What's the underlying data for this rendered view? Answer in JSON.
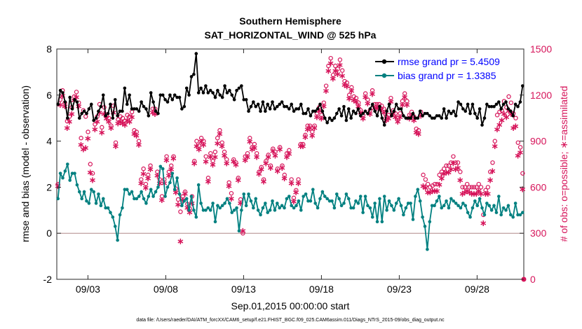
{
  "chart_data": {
    "type": "line",
    "title": [
      "Southern Hemisphere",
      "SAT_HORIZONTAL_WIND @ 525 hPa"
    ],
    "xlabel": "Sep.01,2015 00:00:00 start",
    "ylabel_left": "rmse and bias (model - observation)",
    "ylabel_right": "# of obs: o=possible; ∗=assimilated",
    "footnote": "data file: /Users/raeder/DAI/ATM_forcXX/CAM6_setup/f.e21.FHIST_BGC.f09_025.CAM6assim.011/Diags_NTrS_2015-09/obs_diag_output.nc",
    "xlim": [
      0.0,
      30.0
    ],
    "xticks": [
      2,
      7,
      12,
      17,
      22,
      27
    ],
    "xtick_labels": [
      "09/03",
      "09/08",
      "09/13",
      "09/18",
      "09/23",
      "09/28"
    ],
    "ylim_left": [
      -2,
      8
    ],
    "yticks_left": [
      -2,
      0,
      2,
      4,
      6,
      8
    ],
    "ylim_right": [
      0,
      1500
    ],
    "yticks_right": [
      0,
      300,
      600,
      900,
      1200,
      1500
    ],
    "legend": {
      "position": "top-right",
      "entries": [
        "rmse grand pr = 5.4509",
        "bias grand pr = 1.3385"
      ]
    },
    "colors": {
      "rmse": "#000000",
      "bias": "#008080",
      "obs": "#d6145a",
      "zero": "#b08a8a",
      "legend_text": "#0000ff"
    },
    "series": [
      {
        "name": "rmse",
        "axis": "left",
        "values": [
          5.6,
          6.2,
          6.1,
          5.7,
          5.0,
          5.9,
          5.4,
          5.8,
          5.7,
          5.0,
          5.2,
          5.3,
          5.2,
          5.4,
          5.6,
          4.9,
          5.0,
          5.3,
          5.5,
          6.0,
          5.1,
          5.2,
          5.6,
          5.0,
          5.8,
          5.1,
          5.3,
          5.3,
          6.3,
          5.6,
          6.0,
          5.4,
          5.4,
          5.4,
          5.3,
          5.7,
          5.5,
          5.4,
          5.1,
          6.1,
          5.7,
          5.3,
          5.2,
          6.0,
          6.0,
          5.8,
          5.7,
          6.0,
          5.8,
          6.0,
          5.9,
          5.9,
          5.4,
          5.5,
          6.3,
          6.0,
          6.8,
          6.9,
          7.8,
          6.1,
          6.3,
          6.1,
          6.4,
          6.1,
          6.2,
          6.1,
          5.9,
          6.2,
          6.0,
          5.9,
          6.4,
          6.1,
          6.2,
          6.0,
          5.8,
          6.2,
          6.3,
          6.4,
          5.8,
          5.8,
          5.3,
          5.5,
          5.7,
          5.5,
          5.6,
          5.3,
          5.7,
          5.3,
          5.6,
          5.4,
          5.7,
          5.4,
          5.5,
          5.6,
          5.7,
          5.5,
          5.5,
          5.4,
          5.6,
          5.3,
          5.4,
          5.4,
          5.6,
          5.2,
          5.2,
          5.4,
          5.1,
          5.3,
          5.3,
          5.4,
          5.6,
          5.3,
          5.0,
          4.8,
          5.0,
          4.9,
          5.0,
          5.2,
          5.4,
          5.1,
          5.5,
          4.9,
          5.4,
          5.0,
          5.3,
          5.2,
          5.4,
          5.1,
          5.2,
          5.3,
          5.2,
          5.4,
          5.6,
          5.3,
          5.1,
          5.5,
          5.0,
          4.7,
          5.3,
          5.6,
          5.1,
          5.3,
          5.6,
          5.4,
          5.4,
          5.1,
          5.0,
          5.0,
          5.0,
          5.2,
          5.0,
          5.0,
          5.3,
          5.1,
          5.2,
          5.2,
          5.1,
          5.0,
          5.0,
          5.1,
          5.1,
          5.0,
          5.4,
          5.0,
          5.3,
          5.2,
          5.3,
          5.1,
          5.7,
          5.6,
          5.4,
          5.3,
          5.6,
          5.2,
          5.6,
          5.2,
          5.0,
          5.4,
          4.7,
          5.0,
          5.6,
          5.5,
          5.5,
          5.5,
          5.6,
          5.7,
          5.4,
          5.6,
          5.7,
          5.4,
          5.3,
          5.1,
          5.6,
          5.5,
          5.7,
          6.4
        ]
      },
      {
        "name": "bias",
        "axis": "left",
        "values": [
          1.5,
          2.6,
          2.4,
          2.7,
          3.0,
          2.3,
          2.6,
          2.6,
          2.1,
          1.8,
          1.5,
          1.8,
          1.4,
          1.3,
          1.9,
          1.8,
          1.3,
          1.7,
          1.2,
          1.5,
          1.1,
          1.1,
          0.9,
          0.7,
          0.3,
          -0.3,
          0.8,
          1.1,
          1.9,
          1.9,
          1.7,
          1.8,
          1.5,
          1.5,
          1.6,
          1.8,
          1.5,
          1.3,
          1.6,
          1.9,
          1.6,
          1.8,
          2.0,
          2.9,
          2.8,
          1.6,
          2.0,
          2.2,
          2.6,
          1.9,
          2.4,
          1.7,
          1.2,
          1.4,
          1.5,
          1.0,
          1.6,
          1.0,
          0.7,
          2.1,
          1.3,
          1.0,
          1.0,
          1.1,
          1.0,
          1.3,
          0.5,
          1.2,
          1.1,
          1.2,
          1.3,
          1.5,
          1.3,
          0.9,
          1.0,
          1.1,
          0.1,
          1.0,
          1.7,
          1.2,
          1.7,
          1.4,
          1.1,
          1.5,
          1.0,
          0.8,
          1.1,
          1.3,
          0.9,
          1.0,
          1.4,
          1.0,
          1.3,
          1.1,
          1.2,
          1.1,
          1.5,
          1.6,
          1.2,
          1.1,
          1.2,
          1.4,
          1.0,
          1.6,
          1.7,
          1.4,
          1.4,
          1.9,
          1.3,
          1.1,
          1.5,
          1.8,
          1.6,
          1.5,
          1.4,
          1.4,
          1.1,
          1.7,
          1.5,
          1.2,
          1.3,
          1.7,
          1.5,
          1.1,
          1.1,
          1.4,
          1.3,
          1.6,
          0.9,
          1.6,
          1.2,
          1.1,
          0.7,
          1.3,
          0.5,
          1.5,
          0.5,
          1.6,
          1.0,
          1.4,
          1.2,
          1.0,
          1.3,
          1.5,
          1.2,
          0.8,
          1.1,
          1.3,
          1.3,
          0.6,
          1.6,
          1.9,
          1.4,
          0.7,
          0.3,
          -0.7,
          0.5,
          1.2,
          1.2,
          1.4,
          1.6,
          1.1,
          1.2,
          1.4,
          1.1,
          1.5,
          1.4,
          1.3,
          1.2,
          1.1,
          1.3,
          1.2,
          0.9,
          0.7,
          1.1,
          1.4,
          1.2,
          1.5,
          1.1,
          0.8,
          1.3,
          1.2,
          1.0,
          1.2,
          0.9,
          1.6,
          0.8,
          1.1,
          1.0,
          1.2,
          0.8,
          0.7,
          1.3,
          0.8,
          0.8,
          0.9
        ]
      },
      {
        "name": "obs possible",
        "axis": "right",
        "values": [
          620,
          1170,
          1230,
          1150,
          1030,
          1060,
          1120,
          1190,
          1220,
          1150,
          920,
          1100,
          1060,
          960,
          750,
          690,
          1010,
          1060,
          1140,
          990,
          1120,
          1070,
          1050,
          1000,
          1130,
          890,
          1040,
          1060,
          1050,
          1030,
          1070,
          1060,
          1090,
          970,
          960,
          900,
          650,
          720,
          620,
          680,
          740,
          1110,
          1110,
          700,
          650,
          540,
          650,
          800,
          700,
          740,
          800,
          590,
          520,
          440,
          540,
          570,
          490,
          460,
          540,
          770,
          900,
          870,
          920,
          900,
          800,
          660,
          820,
          770,
          830,
          920,
          970,
          890,
          830,
          780,
          630,
          560,
          780,
          760,
          660,
          520,
          300,
          800,
          820,
          920,
          860,
          880,
          820,
          700,
          730,
          650,
          770,
          810,
          740,
          850,
          830,
          720,
          860,
          740,
          680,
          820,
          840,
          650,
          530,
          580,
          650,
          880,
          880,
          940,
          1000,
          1000,
          960,
          1000,
          1080,
          1120,
          1070,
          1150,
          1260,
          1390,
          1440,
          1330,
          1390,
          1370,
          1430,
          1360,
          1290,
          1280,
          1200,
          1250,
          1190,
          1180,
          1150,
          1100,
          1070,
          1210,
          1170,
          1100,
          1230,
          1140,
          1140,
          1140,
          1130,
          1110,
          1060,
          1070,
          1180,
          1100,
          1080,
          1050,
          1080,
          1160,
          1210,
          1160,
          1070,
          1090,
          1060,
          980,
          970,
          1090,
          680,
          650,
          620,
          600,
          610,
          620,
          620,
          680,
          700,
          720,
          740,
          740,
          760,
          800,
          760,
          760,
          700,
          600,
          600,
          620,
          600,
          600,
          600,
          600,
          620,
          600,
          420,
          580,
          600,
          700,
          760,
          900,
          1070,
          1090,
          1100,
          1160,
          1120,
          1190,
          1150,
          1080,
          1050,
          890,
          860,
          690
        ]
      },
      {
        "name": "obs assimilated",
        "axis": "right",
        "values": [
          610,
          1140,
          1200,
          1130,
          990,
          1030,
          1080,
          1170,
          1190,
          1130,
          880,
          850,
          860,
          920,
          700,
          650,
          980,
          1030,
          1090,
          960,
          1080,
          1050,
          1030,
          990,
          1090,
          870,
          1020,
          1030,
          1020,
          1010,
          1040,
          1030,
          1060,
          950,
          940,
          880,
          630,
          690,
          600,
          660,
          720,
          1090,
          1080,
          680,
          630,
          520,
          630,
          780,
          680,
          720,
          790,
          570,
          490,
          250,
          520,
          560,
          470,
          440,
          500,
          760,
          870,
          850,
          900,
          880,
          770,
          640,
          800,
          750,
          800,
          890,
          950,
          870,
          810,
          760,
          610,
          530,
          770,
          750,
          650,
          500,
          320,
          780,
          800,
          900,
          850,
          860,
          800,
          690,
          720,
          640,
          760,
          800,
          730,
          840,
          810,
          710,
          850,
          730,
          660,
          800,
          820,
          630,
          510,
          570,
          630,
          870,
          870,
          930,
          980,
          990,
          940,
          990,
          1060,
          1100,
          1050,
          1130,
          1230,
          1360,
          1410,
          1310,
          1360,
          1340,
          1400,
          1330,
          1270,
          1260,
          1180,
          1230,
          1170,
          1160,
          1130,
          1090,
          1050,
          1190,
          1150,
          1080,
          1210,
          1120,
          1120,
          1120,
          1110,
          1090,
          1040,
          1050,
          1160,
          1080,
          1060,
          1030,
          1060,
          1140,
          1190,
          1140,
          1050,
          1070,
          1040,
          960,
          950,
          1070,
          610,
          600,
          570,
          570,
          580,
          580,
          580,
          620,
          660,
          690,
          700,
          700,
          720,
          760,
          720,
          730,
          650,
          560,
          570,
          580,
          570,
          560,
          560,
          560,
          580,
          560,
          370,
          560,
          560,
          650,
          710,
          870,
          980,
          1010,
          1040,
          1080,
          1060,
          1100,
          1080,
          990,
          1000,
          810,
          830,
          590
        ]
      }
    ]
  }
}
